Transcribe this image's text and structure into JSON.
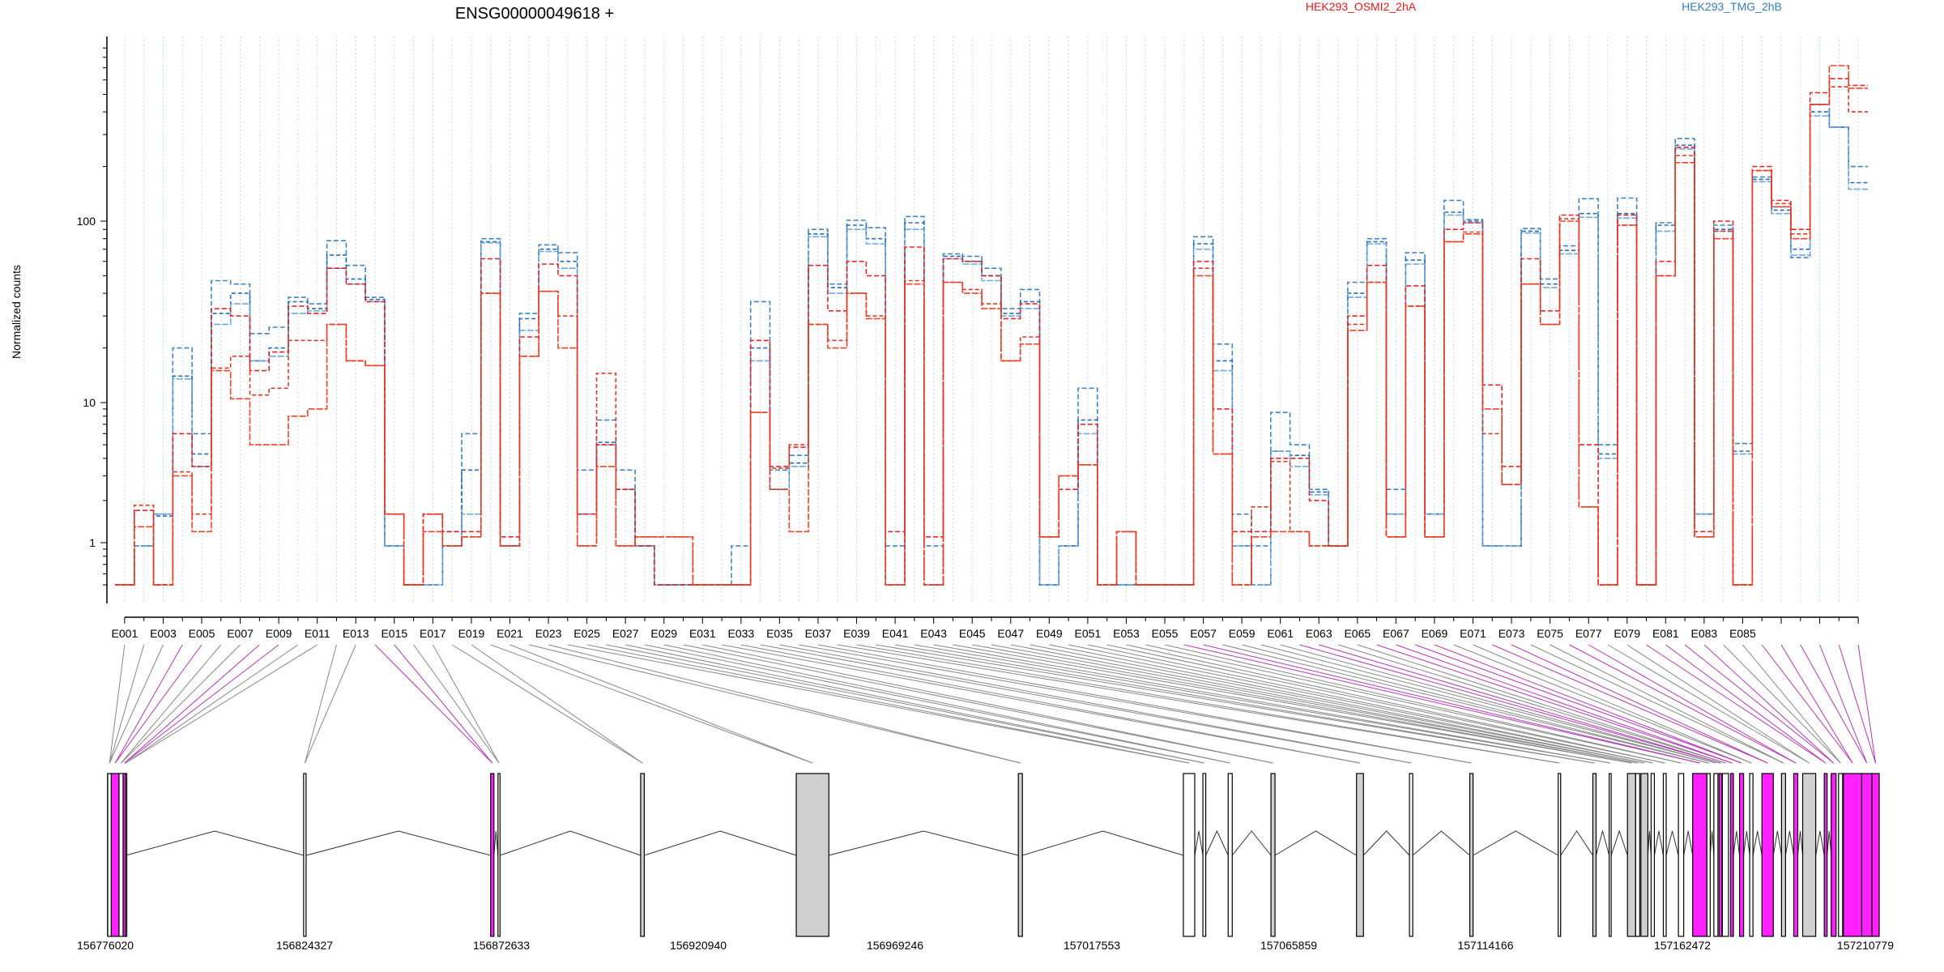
{
  "chart_data": {
    "type": "line",
    "title": "ENSG00000049618 +",
    "ylabel": "Normalized counts",
    "y_scale": "log",
    "y_ticks": [
      "1",
      "10",
      "100"
    ],
    "ylim": [
      0.45,
      900
    ],
    "grid": "vertical dotted lines at each exon bin",
    "legend": [
      {
        "name": "HEK293_OSMI2_2hA",
        "color": "#e41a1c"
      },
      {
        "name": "HEK293_TMG_2hB",
        "color": "#377eb8"
      }
    ],
    "exon_labels_shown": [
      "E001",
      "E003",
      "E005",
      "E007",
      "E009",
      "E011",
      "E013",
      "E015",
      "E017",
      "E019",
      "E021",
      "E023",
      "E025",
      "E027",
      "E029",
      "E031",
      "E033",
      "E035",
      "E037",
      "E039",
      "E041",
      "E043",
      "E045",
      "E047",
      "E049",
      "E051",
      "E053",
      "E055",
      "E057",
      "E059",
      "E061",
      "E063",
      "E065",
      "E067",
      "E069",
      "E071",
      "E073",
      "E075",
      "E077",
      "E079",
      "E081",
      "E083",
      "E085"
    ],
    "series": [
      {
        "name": "HEK293_TMG_2hB (rep 1)",
        "color": "#377eb8",
        "values": [
          0.5,
          0.95,
          1.6,
          20,
          6,
          47,
          45,
          24,
          26,
          38,
          35,
          78,
          57,
          38,
          0.95,
          0.5,
          0.5,
          1.2,
          6,
          80,
          0.95,
          31,
          74,
          67,
          3.3,
          7.5,
          3.3,
          0.95,
          0.5,
          0.5,
          0.5,
          0.5,
          0.95,
          36,
          3.3,
          4.2,
          90,
          45,
          101,
          92,
          0.95,
          106,
          0.95,
          66,
          64,
          55,
          33,
          42,
          0.5,
          0.95,
          12,
          0.5,
          0.5,
          0.5,
          0.5,
          0.5,
          82,
          21,
          1.6,
          0.95,
          8.5,
          5,
          2.4,
          0.95,
          46,
          80,
          2.4,
          67,
          1.6,
          130,
          102,
          0.95,
          0.95,
          91,
          48,
          73,
          133,
          5,
          134,
          0.5,
          98,
          285,
          1.6,
          95,
          5.1,
          175,
          120,
          63,
          440,
          330,
          200
        ]
      },
      {
        "name": "HEK293_TMG_2hB (rep 2)",
        "color": "#2166ac",
        "values": [
          0.5,
          0.95,
          1.55,
          14,
          4.3,
          31,
          40,
          17,
          20,
          36,
          33,
          65,
          48,
          37,
          0.95,
          0.5,
          0.5,
          0.95,
          3.3,
          77,
          0.95,
          29,
          70,
          60,
          1.6,
          5.2,
          2.4,
          0.95,
          0.5,
          0.5,
          0.5,
          0.5,
          0.5,
          20,
          2.4,
          3.7,
          85,
          43,
          95,
          80,
          0.5,
          98,
          0.5,
          64,
          60,
          50,
          31,
          36,
          0.5,
          0.95,
          7.5,
          0.5,
          0.5,
          0.5,
          0.5,
          0.5,
          75,
          17,
          0.95,
          0.5,
          4.5,
          4.2,
          2.3,
          0.95,
          40,
          77,
          1.6,
          61,
          1.6,
          112,
          100,
          0.95,
          0.95,
          88,
          45,
          69,
          110,
          4.3,
          110,
          0.5,
          95,
          262,
          1.6,
          90,
          4.5,
          170,
          115,
          70,
          400,
          330,
          163
        ]
      },
      {
        "name": "HEK293_TMG_2hB (rep 3)",
        "color": "#6aa5d8",
        "values": [
          0.5,
          0.95,
          1.6,
          13.5,
          3.5,
          27,
          35,
          17,
          18,
          31,
          32,
          55,
          45,
          36,
          0.95,
          0.5,
          0.5,
          0.95,
          1.6,
          76,
          0.95,
          25,
          68,
          55,
          1.6,
          5,
          2.4,
          0.95,
          0.5,
          0.5,
          0.5,
          0.5,
          0.5,
          17,
          2.4,
          3.5,
          82,
          40,
          90,
          75,
          0.5,
          90,
          0.5,
          62,
          58,
          47,
          30,
          33,
          0.5,
          0.95,
          6,
          0.5,
          0.5,
          0.5,
          0.5,
          0.5,
          70,
          15,
          0.95,
          0.5,
          4.5,
          3.5,
          2.2,
          0.95,
          38,
          75,
          1.6,
          58,
          1.6,
          108,
          98,
          0.95,
          0.95,
          86,
          43,
          66,
          105,
          4,
          104,
          0.5,
          88,
          250,
          1.6,
          88,
          4.3,
          165,
          110,
          65,
          380,
          330,
          150
        ]
      },
      {
        "name": "HEK293_OSMI2_2hA (rep 1)",
        "color": "#e41a1c",
        "values": [
          0.5,
          1.7,
          0.5,
          6,
          3.5,
          33,
          30,
          15,
          19,
          34,
          31,
          55,
          45,
          36,
          1.6,
          0.5,
          1.6,
          1.2,
          1.2,
          62,
          1.1,
          23,
          58,
          50,
          1.6,
          5,
          2.4,
          0.95,
          0.5,
          0.5,
          0.5,
          0.5,
          0.5,
          22,
          3.5,
          4.8,
          57,
          32,
          60,
          50,
          1.2,
          72,
          1.1,
          62,
          60,
          50,
          29,
          35,
          1.1,
          2.4,
          7,
          0.5,
          1.2,
          0.5,
          0.5,
          0.5,
          60,
          9,
          1.2,
          1.2,
          4,
          4,
          2,
          0.95,
          30,
          57,
          1.1,
          44,
          1.1,
          90,
          98,
          12.5,
          3.5,
          62,
          32,
          108,
          5,
          0.5,
          108,
          0.5,
          60,
          255,
          1.2,
          100,
          0.5,
          200,
          130,
          90,
          510,
          610,
          560
        ]
      },
      {
        "name": "HEK293_OSMI2_2hA (rep 2)",
        "color": "#d7301f",
        "values": [
          0.5,
          1.85,
          0.5,
          3.2,
          1.6,
          15.5,
          18,
          11,
          12,
          22,
          22,
          27,
          17,
          16,
          1.6,
          0.5,
          1.6,
          0.95,
          1.1,
          40,
          0.95,
          18,
          41,
          30,
          0.95,
          14.5,
          0.95,
          1.1,
          1.1,
          1.1,
          0.5,
          0.5,
          0.5,
          8.5,
          3.4,
          5,
          27,
          22,
          40,
          30,
          0.5,
          47,
          0.5,
          46,
          42,
          35,
          17,
          23,
          1.1,
          3,
          3.6,
          0.5,
          1.2,
          0.5,
          0.5,
          0.5,
          55,
          4.3,
          0.5,
          1.8,
          3.8,
          1.2,
          0.95,
          0.95,
          27,
          46,
          1.1,
          34,
          1.1,
          77,
          87,
          6,
          2.6,
          45,
          27,
          103,
          1.8,
          0.5,
          95,
          0.5,
          50,
          230,
          1.1,
          88,
          0.5,
          190,
          125,
          85,
          440,
          550,
          400
        ]
      },
      {
        "name": "HEK293_OSMI2_2hA (rep 3)",
        "color": "#f03b20",
        "values": [
          0.5,
          1.3,
          0.5,
          3,
          1.2,
          15,
          10.5,
          5,
          5,
          8,
          9,
          27,
          17,
          16,
          1.6,
          0.5,
          1.2,
          0.95,
          1.1,
          40,
          0.95,
          18,
          41,
          20,
          0.95,
          3.5,
          0.95,
          1.1,
          1.1,
          1.1,
          0.5,
          0.5,
          0.5,
          8.5,
          2.4,
          1.2,
          27,
          20,
          40,
          29,
          0.5,
          45,
          0.5,
          46,
          40,
          33,
          17,
          21,
          1.1,
          3,
          3.6,
          0.5,
          1.2,
          0.5,
          0.5,
          0.5,
          50,
          4.3,
          0.5,
          1.1,
          1.2,
          1.2,
          0.95,
          0.95,
          25,
          46,
          1.1,
          34,
          1.1,
          77,
          85,
          9,
          2.6,
          45,
          27,
          100,
          1.8,
          0.5,
          95,
          0.5,
          50,
          210,
          1.1,
          80,
          0.5,
          190,
          120,
          80,
          440,
          720,
          540
        ]
      }
    ],
    "genomic_axis": {
      "tick_labels": [
        "156776020",
        "156824327",
        "156872633",
        "156920940",
        "156969246",
        "157017553",
        "157065859",
        "157114166",
        "157162472",
        "157210779"
      ],
      "start": 156776020,
      "end": 157210779
    },
    "exon_track": {
      "description": "gene model with exon boxes; tested exons shaded, significant exons highlighted",
      "legend_colors": {
        "plain": "#ffffff",
        "tested": "#d0d0d0",
        "highlight": "#ff22ff"
      },
      "blocks": [
        {
          "start": 156776020,
          "end": 156776900,
          "style": "plain"
        },
        {
          "start": 156776900,
          "end": 156778800,
          "style": "highlight"
        },
        {
          "start": 156778800,
          "end": 156779800,
          "style": "plain"
        },
        {
          "start": 156779800,
          "end": 156780400,
          "style": "highlight"
        },
        {
          "start": 156780400,
          "end": 156780500,
          "style": "plain"
        },
        {
          "start": 156824100,
          "end": 156824700,
          "style": "plain"
        },
        {
          "start": 156870000,
          "end": 156870800,
          "style": "highlight"
        },
        {
          "start": 156871800,
          "end": 156872300,
          "style": "plain"
        },
        {
          "start": 156906800,
          "end": 156907700,
          "style": "tested"
        },
        {
          "start": 156945000,
          "end": 156953000,
          "style": "tested"
        },
        {
          "start": 156999500,
          "end": 157000500,
          "style": "tested"
        },
        {
          "start": 157040000,
          "end": 157042800,
          "style": "plain"
        },
        {
          "start": 157044800,
          "end": 157045500,
          "style": "plain"
        },
        {
          "start": 157051000,
          "end": 157052000,
          "style": "plain"
        },
        {
          "start": 157061500,
          "end": 157062500,
          "style": "tested"
        },
        {
          "start": 157082500,
          "end": 157084200,
          "style": "tested"
        },
        {
          "start": 157095500,
          "end": 157096300,
          "style": "plain"
        },
        {
          "start": 157110300,
          "end": 157111100,
          "style": "tested"
        },
        {
          "start": 157132000,
          "end": 157132600,
          "style": "plain"
        },
        {
          "start": 157140500,
          "end": 157141300,
          "style": "tested"
        },
        {
          "start": 157144500,
          "end": 157145000,
          "style": "plain"
        },
        {
          "start": 157149000,
          "end": 157151000,
          "style": "tested"
        },
        {
          "start": 157151000,
          "end": 157152000,
          "style": "plain"
        },
        {
          "start": 157152300,
          "end": 157154000,
          "style": "tested"
        },
        {
          "start": 157154800,
          "end": 157155600,
          "style": "plain"
        },
        {
          "start": 157157800,
          "end": 157158500,
          "style": "plain"
        },
        {
          "start": 157161500,
          "end": 157162800,
          "style": "plain"
        },
        {
          "start": 157165000,
          "end": 157168500,
          "style": "highlight"
        },
        {
          "start": 157168500,
          "end": 157169300,
          "style": "plain"
        },
        {
          "start": 157170200,
          "end": 157171200,
          "style": "plain"
        },
        {
          "start": 157171500,
          "end": 157172200,
          "style": "highlight"
        },
        {
          "start": 157172300,
          "end": 157173800,
          "style": "plain"
        },
        {
          "start": 157174300,
          "end": 157175000,
          "style": "highlight"
        },
        {
          "start": 157176500,
          "end": 157177500,
          "style": "highlight"
        },
        {
          "start": 157179000,
          "end": 157179800,
          "style": "plain"
        },
        {
          "start": 157182000,
          "end": 157184800,
          "style": "highlight"
        },
        {
          "start": 157186800,
          "end": 157187800,
          "style": "tested"
        },
        {
          "start": 157189800,
          "end": 157190800,
          "style": "highlight"
        },
        {
          "start": 157192000,
          "end": 157195200,
          "style": "tested"
        },
        {
          "start": 157197300,
          "end": 157198000,
          "style": "highlight"
        },
        {
          "start": 157199000,
          "end": 157200200,
          "style": "highlight"
        },
        {
          "start": 157200800,
          "end": 157201800,
          "style": "plain"
        },
        {
          "start": 157202000,
          "end": 157206500,
          "style": "highlight"
        },
        {
          "start": 157206500,
          "end": 157209000,
          "style": "highlight"
        },
        {
          "start": 157209000,
          "end": 157210779,
          "style": "highlight"
        }
      ]
    }
  }
}
